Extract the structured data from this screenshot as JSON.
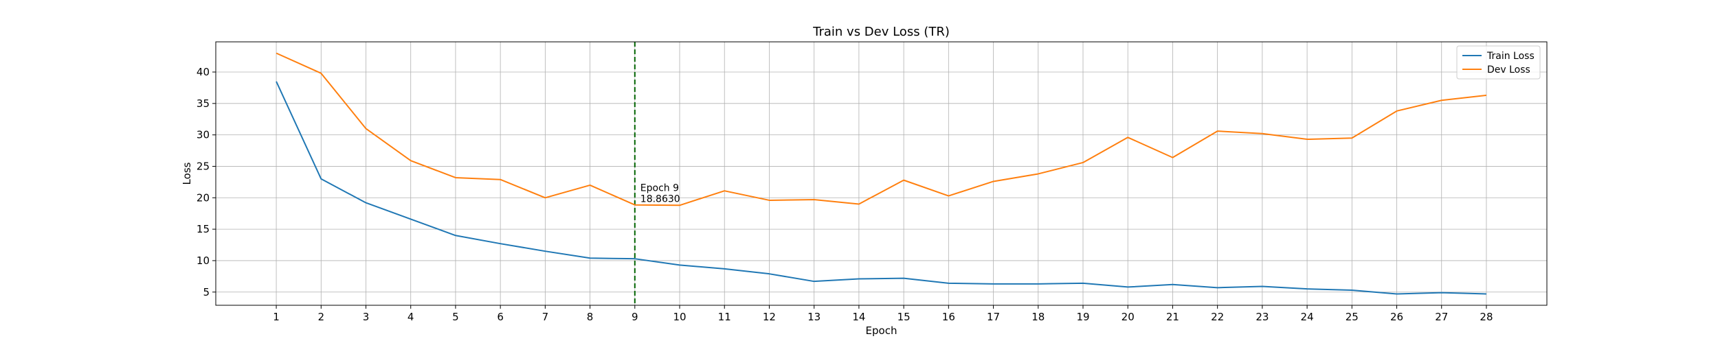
{
  "chart_data": {
    "type": "line",
    "title": "Train vs Dev Loss (TR)",
    "xlabel": "Epoch",
    "ylabel": "Loss",
    "x": [
      1,
      2,
      3,
      4,
      5,
      6,
      7,
      8,
      9,
      10,
      11,
      12,
      13,
      14,
      15,
      16,
      17,
      18,
      19,
      20,
      21,
      22,
      23,
      24,
      25,
      26,
      27,
      28
    ],
    "xlim": [
      -0.35,
      29.35
    ],
    "ylim": [
      2.9,
      44.8
    ],
    "yticks": [
      5,
      10,
      15,
      20,
      25,
      30,
      35,
      40
    ],
    "grid": true,
    "legend_position": "top-right",
    "series": [
      {
        "name": "Train Loss",
        "color": "#1f77b4",
        "values": [
          38.5,
          23.0,
          19.2,
          16.6,
          14.0,
          12.7,
          11.5,
          10.4,
          10.3,
          9.3,
          8.7,
          7.9,
          6.7,
          7.1,
          7.2,
          6.4,
          6.3,
          6.3,
          6.4,
          5.8,
          6.2,
          5.7,
          5.9,
          5.5,
          5.3,
          4.7,
          4.9,
          4.7
        ]
      },
      {
        "name": "Dev Loss",
        "color": "#ff7f0e",
        "values": [
          43.0,
          39.8,
          31.0,
          25.9,
          23.2,
          22.9,
          20.0,
          22.0,
          18.863,
          18.8,
          21.1,
          19.6,
          19.7,
          19.0,
          22.8,
          20.3,
          22.6,
          23.8,
          25.6,
          29.6,
          26.4,
          30.6,
          30.2,
          29.3,
          29.5,
          33.8,
          35.5,
          36.3
        ]
      }
    ],
    "marker": {
      "x": 9,
      "color": "#006400",
      "label_line1": "Epoch 9",
      "label_line2": "18.8630"
    }
  }
}
